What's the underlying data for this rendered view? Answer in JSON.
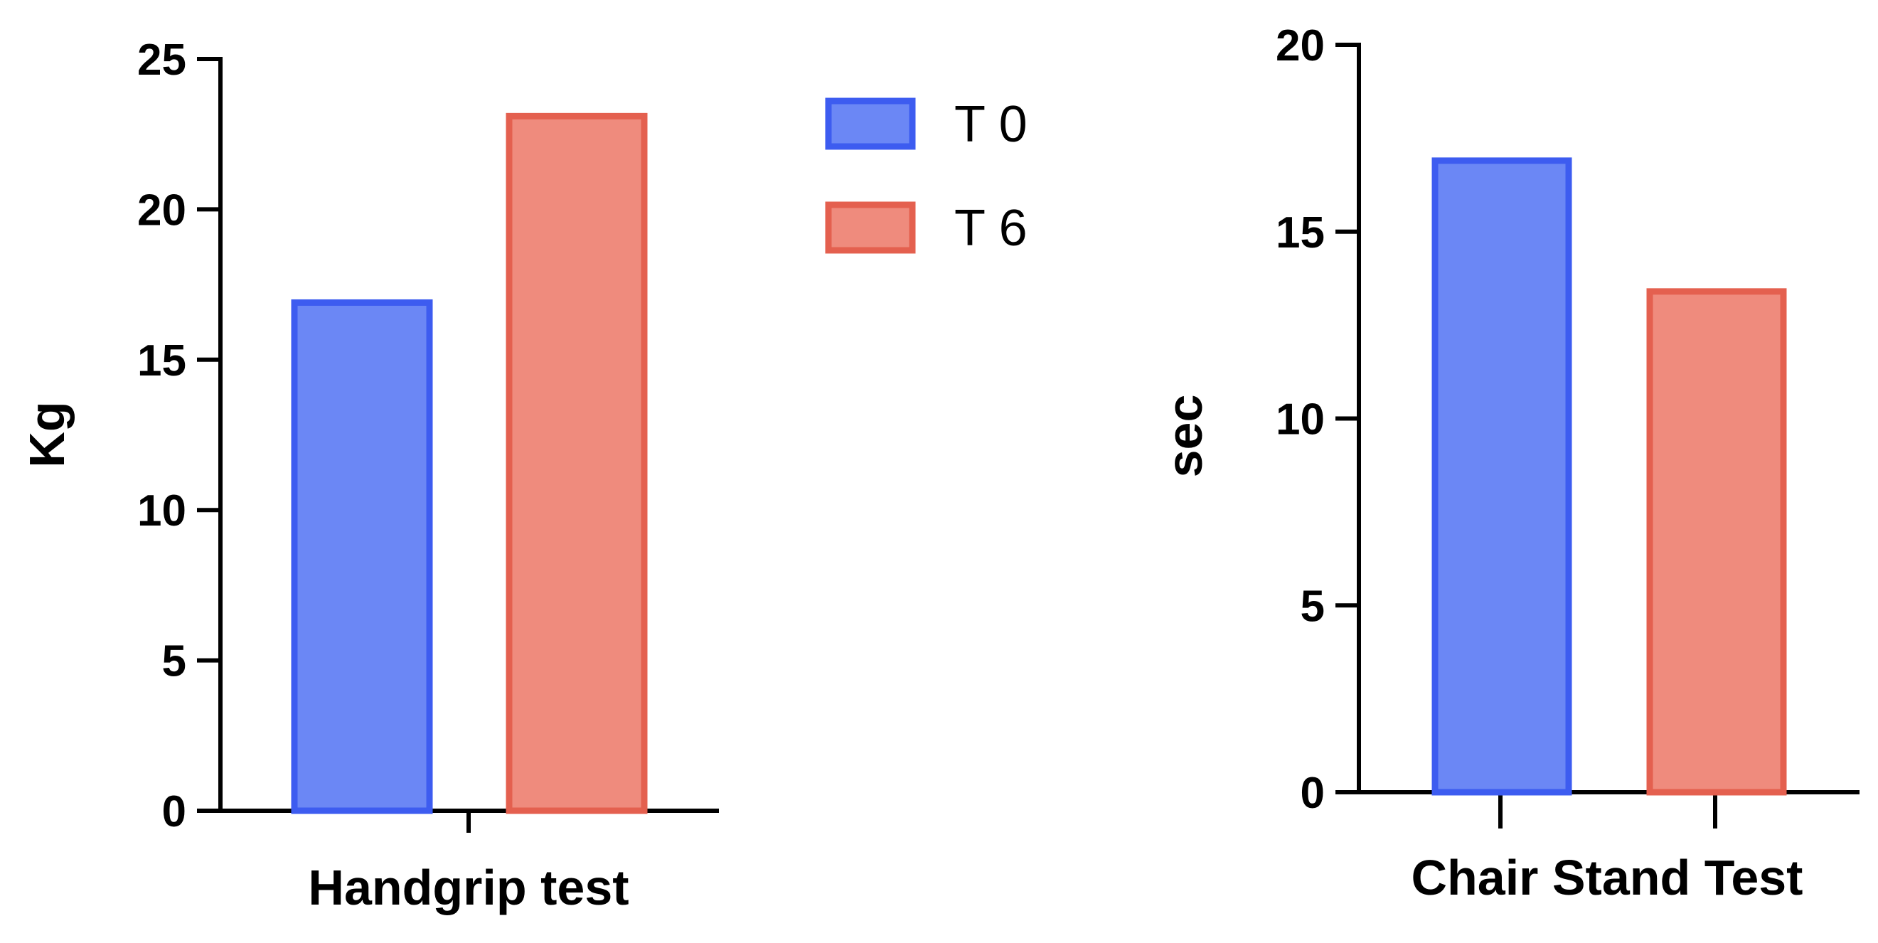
{
  "chart_data": [
    {
      "type": "bar",
      "categories": [
        "Handgrip test"
      ],
      "xlabel": "Handgrip test",
      "ylabel": "Kg",
      "ylim": [
        0,
        25
      ],
      "yticks": [
        0,
        5,
        10,
        15,
        20,
        25
      ],
      "series": [
        {
          "name": "T 0",
          "values": [
            16.9
          ]
        },
        {
          "name": "T 6",
          "values": [
            23.1
          ]
        }
      ],
      "grid": false
    },
    {
      "type": "bar",
      "categories": [
        "Chair Stand Test"
      ],
      "xlabel": "Chair Stand Test",
      "ylabel": "sec",
      "ylim": [
        0,
        20
      ],
      "yticks": [
        0,
        5,
        10,
        15,
        20
      ],
      "series": [
        {
          "name": "T 0",
          "values": [
            16.9
          ]
        },
        {
          "name": "T 6",
          "values": [
            13.4
          ]
        }
      ],
      "grid": false
    }
  ],
  "legend": {
    "placement": "top-center",
    "items": [
      {
        "label": "T 0",
        "fill": "#6b87f5",
        "stroke": "#3d5cf0"
      },
      {
        "label": "T 6",
        "fill": "#ef8b7d",
        "stroke": "#e4604f"
      }
    ]
  },
  "colors": {
    "t0_fill": "#6b87f5",
    "t0_stroke": "#3d5cf0",
    "t6_fill": "#ef8b7d",
    "t6_stroke": "#e4604f",
    "axis": "#000000"
  }
}
